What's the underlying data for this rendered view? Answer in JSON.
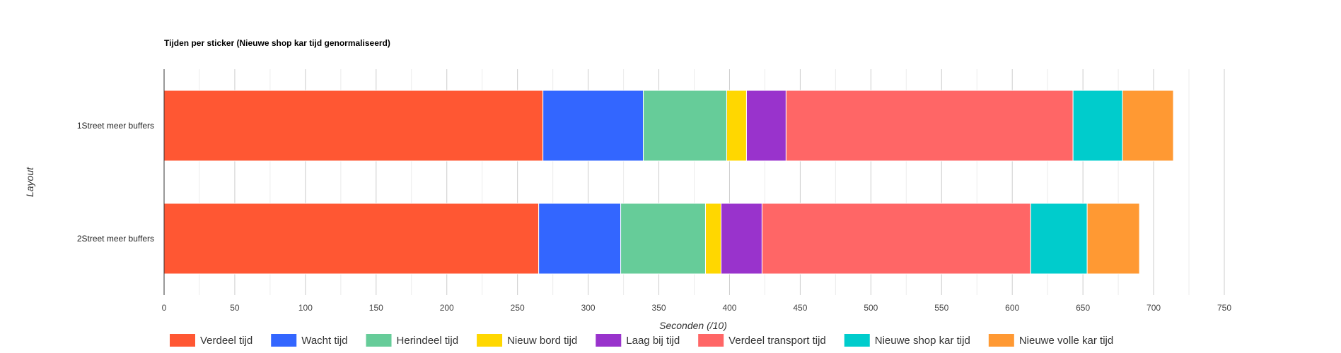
{
  "chart_data": {
    "type": "bar",
    "orientation": "horizontal",
    "stacked": true,
    "title": "Tijden per sticker (Nieuwe shop kar tijd genormaliseerd)",
    "xlabel": "Seconden (/10)",
    "ylabel": "Layout",
    "xlim": [
      0,
      750
    ],
    "xticks": [
      0,
      50,
      100,
      150,
      200,
      250,
      300,
      350,
      400,
      450,
      500,
      550,
      600,
      650,
      700,
      750
    ],
    "grid": true,
    "legend_position": "bottom",
    "categories": [
      "1Street meer buffers",
      "2Street meer buffers"
    ],
    "series": [
      {
        "name": "Verdeel tijd",
        "color": "#ff5733",
        "values": [
          268,
          265
        ]
      },
      {
        "name": "Wacht tijd",
        "color": "#3366ff",
        "values": [
          71,
          58
        ]
      },
      {
        "name": "Herindeel tijd",
        "color": "#66cc99",
        "values": [
          59,
          60
        ]
      },
      {
        "name": "Nieuw bord tijd",
        "color": "#ffd700",
        "values": [
          14,
          11
        ]
      },
      {
        "name": "Laag bij tijd",
        "color": "#9933cc",
        "values": [
          28,
          29
        ]
      },
      {
        "name": "Verdeel transport tijd",
        "color": "#ff6666",
        "values": [
          203,
          190
        ]
      },
      {
        "name": "Nieuwe shop kar tijd",
        "color": "#00cccc",
        "values": [
          35,
          40
        ]
      },
      {
        "name": "Nieuwe volle kar tijd",
        "color": "#ff9933",
        "values": [
          36,
          37
        ]
      }
    ]
  }
}
